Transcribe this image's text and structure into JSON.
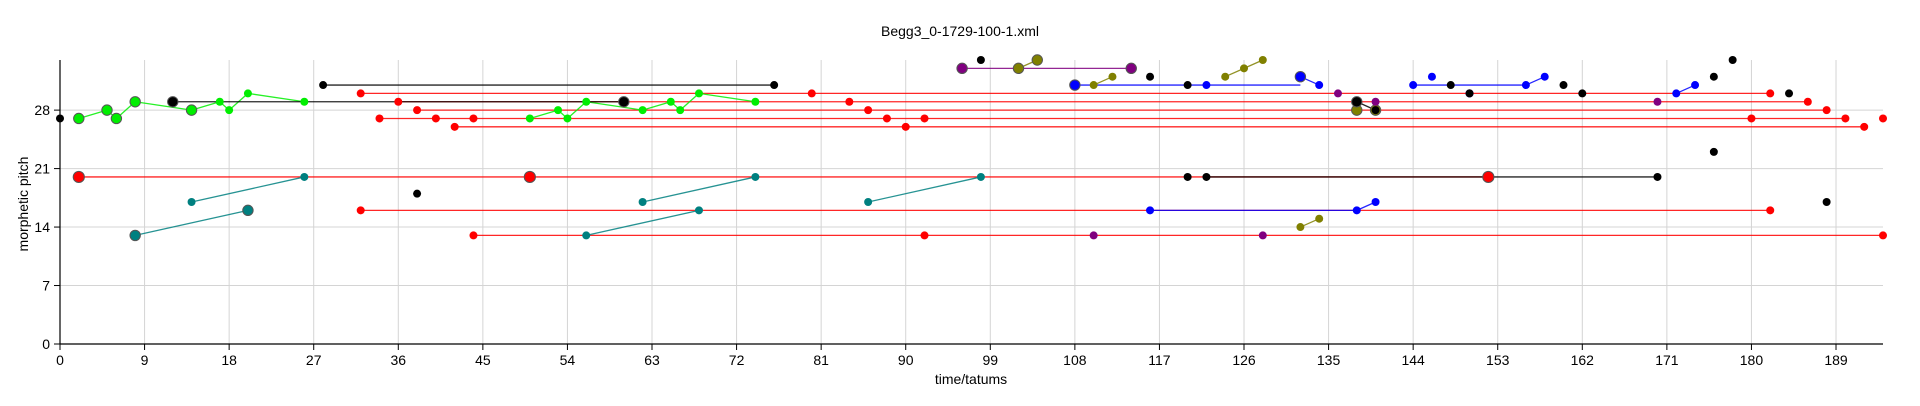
{
  "chart_data": {
    "type": "scatter",
    "title": "Begg3_0-1729-100-1.xml",
    "xlabel": "time/tatums",
    "ylabel": "morphetic pitch",
    "xlim": [
      0,
      194
    ],
    "ylim": [
      0,
      34
    ],
    "x_ticks": [
      0,
      9,
      18,
      27,
      36,
      45,
      54,
      63,
      72,
      81,
      90,
      99,
      108,
      117,
      126,
      135,
      144,
      153,
      162,
      171,
      180,
      189
    ],
    "y_ticks": [
      0,
      7,
      14,
      21,
      28
    ],
    "grid": true,
    "legend": "none",
    "colors": {
      "red": "#ff0000",
      "green": "#00ee00",
      "teal": "#008080",
      "blue": "#0000ff",
      "olive": "#808000",
      "purple": "#800080",
      "black": "#000000",
      "gray": "#808080"
    },
    "series": [
      {
        "color": "#ff0000",
        "points": [
          [
            2,
            20,
            1.4
          ],
          [
            32,
            30,
            1
          ],
          [
            32,
            16,
            1
          ],
          [
            34,
            27,
            1
          ],
          [
            36,
            29,
            1
          ],
          [
            38,
            28,
            1
          ],
          [
            40,
            27,
            1
          ],
          [
            42,
            26,
            1
          ],
          [
            44,
            27,
            1
          ],
          [
            44,
            13,
            1
          ],
          [
            50,
            20,
            1.4
          ],
          [
            80,
            30,
            1
          ],
          [
            84,
            29,
            1
          ],
          [
            86,
            28,
            1
          ],
          [
            88,
            27,
            1
          ],
          [
            90,
            26,
            1
          ],
          [
            92,
            27,
            1
          ],
          [
            92,
            13,
            1
          ],
          [
            152,
            20,
            1.4
          ],
          [
            182,
            30,
            1
          ],
          [
            182,
            16,
            1
          ],
          [
            186,
            29,
            1
          ],
          [
            180,
            27,
            1
          ],
          [
            188,
            28,
            1
          ],
          [
            190,
            27,
            1
          ],
          [
            192,
            26,
            1
          ],
          [
            194,
            27,
            1
          ],
          [
            194,
            13,
            1
          ]
        ],
        "lines": [
          [
            32,
            30,
            182,
            30
          ],
          [
            36,
            29,
            186,
            29
          ],
          [
            38,
            28,
            188,
            28
          ],
          [
            34,
            27,
            190,
            27
          ],
          [
            42,
            26,
            192,
            26
          ],
          [
            2,
            20,
            152,
            20
          ],
          [
            32,
            16,
            182,
            16
          ],
          [
            44,
            13,
            194,
            13
          ]
        ]
      },
      {
        "color": "#00ee00",
        "points": [
          [
            2,
            27,
            1.3
          ],
          [
            5,
            28,
            1.3
          ],
          [
            6,
            27,
            1.3
          ],
          [
            8,
            29,
            1.3
          ],
          [
            14,
            28,
            1.3
          ],
          [
            17,
            29,
            1
          ],
          [
            18,
            28,
            1
          ],
          [
            20,
            30,
            1
          ],
          [
            26,
            29,
            1
          ],
          [
            50,
            27,
            1
          ],
          [
            53,
            28,
            1
          ],
          [
            54,
            27,
            1
          ],
          [
            56,
            29,
            1
          ],
          [
            62,
            28,
            1
          ],
          [
            65,
            29,
            1
          ],
          [
            66,
            28,
            1
          ],
          [
            68,
            30,
            1
          ],
          [
            74,
            29,
            1
          ]
        ],
        "lines": [
          [
            2,
            27,
            5,
            28
          ],
          [
            5,
            28,
            6,
            27
          ],
          [
            6,
            27,
            8,
            29
          ],
          [
            8,
            29,
            14,
            28
          ],
          [
            14,
            28,
            17,
            29
          ],
          [
            17,
            29,
            18,
            28
          ],
          [
            18,
            28,
            20,
            30
          ],
          [
            20,
            30,
            26,
            29
          ],
          [
            50,
            27,
            53,
            28
          ],
          [
            53,
            28,
            54,
            27
          ],
          [
            54,
            27,
            56,
            29
          ],
          [
            56,
            29,
            62,
            28
          ],
          [
            62,
            28,
            65,
            29
          ],
          [
            65,
            29,
            66,
            28
          ],
          [
            66,
            28,
            68,
            30
          ],
          [
            68,
            30,
            74,
            29
          ]
        ]
      },
      {
        "color": "#008080",
        "points": [
          [
            8,
            13,
            1.3
          ],
          [
            14,
            17,
            1
          ],
          [
            20,
            16,
            1.3
          ],
          [
            26,
            20,
            1
          ],
          [
            56,
            13,
            1
          ],
          [
            62,
            17,
            1
          ],
          [
            68,
            16,
            1
          ],
          [
            74,
            20,
            1
          ],
          [
            86,
            17,
            1
          ],
          [
            98,
            20,
            1
          ]
        ],
        "lines": [
          [
            8,
            13,
            20,
            16
          ],
          [
            14,
            17,
            26,
            20
          ],
          [
            56,
            13,
            68,
            16
          ],
          [
            62,
            17,
            74,
            20
          ],
          [
            86,
            17,
            98,
            20
          ]
        ]
      },
      {
        "color": "#0000ff",
        "points": [
          [
            108,
            31,
            1.3
          ],
          [
            116,
            16,
            1
          ],
          [
            122,
            31,
            1
          ],
          [
            132,
            32,
            1.3
          ],
          [
            134,
            31,
            1
          ],
          [
            138,
            16,
            1
          ],
          [
            140,
            17,
            1
          ],
          [
            144,
            31,
            1
          ],
          [
            146,
            32,
            1
          ],
          [
            150,
            30,
            1
          ],
          [
            156,
            31,
            1
          ],
          [
            158,
            32,
            1
          ],
          [
            172,
            30,
            1
          ],
          [
            174,
            31,
            1
          ]
        ],
        "lines": [
          [
            108,
            31,
            132,
            31
          ],
          [
            116,
            16,
            138,
            16
          ],
          [
            138,
            16,
            140,
            17
          ],
          [
            144,
            31,
            156,
            31
          ],
          [
            156,
            31,
            158,
            32
          ],
          [
            172,
            30,
            174,
            31
          ],
          [
            132,
            32,
            134,
            31
          ]
        ]
      },
      {
        "color": "#808000",
        "points": [
          [
            102,
            33,
            1.3
          ],
          [
            104,
            34,
            1.3
          ],
          [
            110,
            31,
            1
          ],
          [
            112,
            32,
            1
          ],
          [
            124,
            32,
            1
          ],
          [
            126,
            33,
            1
          ],
          [
            128,
            34,
            1
          ],
          [
            132,
            14,
            1
          ],
          [
            134,
            15,
            1
          ],
          [
            138,
            28,
            1.3
          ],
          [
            140,
            28,
            1.3
          ]
        ],
        "lines": [
          [
            102,
            33,
            104,
            34
          ],
          [
            110,
            31,
            112,
            32
          ],
          [
            124,
            32,
            126,
            33
          ],
          [
            126,
            33,
            128,
            34
          ],
          [
            132,
            14,
            134,
            15
          ]
        ]
      },
      {
        "color": "#800080",
        "points": [
          [
            96,
            33,
            1.3
          ],
          [
            114,
            33,
            1.3
          ],
          [
            110,
            13,
            1
          ],
          [
            128,
            13,
            1
          ],
          [
            136,
            30,
            1
          ],
          [
            140,
            29,
            1
          ],
          [
            150,
            30,
            1
          ],
          [
            170,
            29,
            1
          ]
        ],
        "lines": [
          [
            96,
            33,
            114,
            33
          ]
        ]
      },
      {
        "color": "#000000",
        "points": [
          [
            0,
            27,
            1
          ],
          [
            12,
            29,
            1.3
          ],
          [
            28,
            31,
            1
          ],
          [
            38,
            18,
            1
          ],
          [
            60,
            29,
            1.3
          ],
          [
            76,
            31,
            1
          ],
          [
            98,
            34,
            1
          ],
          [
            116,
            32,
            1
          ],
          [
            120,
            31,
            1
          ],
          [
            120,
            20,
            1
          ],
          [
            122,
            20,
            1
          ],
          [
            138,
            29,
            1.3
          ],
          [
            140,
            28,
            1
          ],
          [
            148,
            31,
            1
          ],
          [
            150,
            30,
            1
          ],
          [
            160,
            31,
            1
          ],
          [
            162,
            30,
            1
          ],
          [
            170,
            20,
            1
          ],
          [
            176,
            32,
            1
          ],
          [
            176,
            23,
            1
          ],
          [
            178,
            34,
            1
          ],
          [
            184,
            30,
            1
          ],
          [
            188,
            17,
            1
          ]
        ],
        "lines": [
          [
            28,
            31,
            76,
            31
          ],
          [
            12,
            29,
            60,
            29
          ],
          [
            122,
            20,
            170,
            20
          ],
          [
            138,
            29,
            140,
            28
          ]
        ]
      }
    ]
  }
}
